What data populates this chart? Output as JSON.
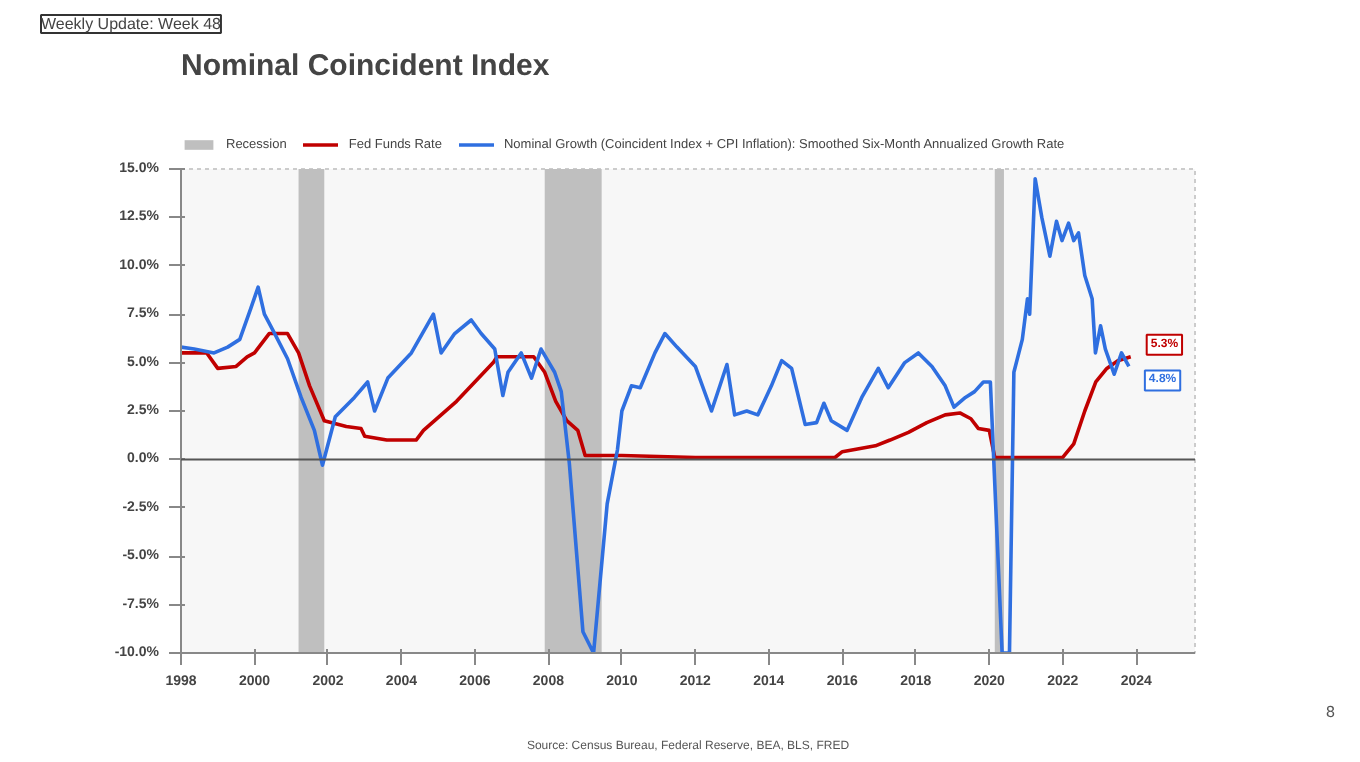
{
  "chart_data": {
    "type": "line",
    "title": "Nominal Coincident Index",
    "annotations": [
      "Weekly Update: Week 48",
      "Source: Census Bureau, Federal Reserve, BEA, BLS, FRED",
      "8",
      {
        "text": "5.3%",
        "x": 2023.85,
        "y": 5.3
      },
      {
        "text": "4.8%",
        "x": 2023.8,
        "y": 4.8
      }
    ],
    "series": [
      {
        "name": "Fed Funds Rate",
        "color": "#c00000",
        "x": [
          1998,
          1998.7,
          1999.0,
          1999.5,
          1999.8,
          2000.0,
          2000.4,
          2000.9,
          2001.2,
          2001.5,
          2001.9,
          2002.5,
          2002.9,
          2003.0,
          2003.6,
          2004.4,
          2004.6,
          2005.5,
          2006.5,
          2006.6,
          2007.6,
          2007.9,
          2008.2,
          2008.5,
          2008.8,
          2009.0,
          2010.0,
          2012.0,
          2015.8,
          2016.0,
          2016.9,
          2017.3,
          2017.8,
          2018.3,
          2018.8,
          2019.2,
          2019.5,
          2019.7,
          2020.0,
          2020.15,
          2022.0,
          2022.3,
          2022.6,
          2022.9,
          2023.2,
          2023.5,
          2023.85
        ],
        "values": [
          5.5,
          5.5,
          4.7,
          4.8,
          5.3,
          5.5,
          6.5,
          6.5,
          5.5,
          3.8,
          2.0,
          1.7,
          1.6,
          1.2,
          1.0,
          1.0,
          1.5,
          3.0,
          5.0,
          5.3,
          5.3,
          4.5,
          3.0,
          2.0,
          1.5,
          0.2,
          0.2,
          0.1,
          0.1,
          0.4,
          0.7,
          1.0,
          1.4,
          1.9,
          2.3,
          2.4,
          2.1,
          1.6,
          1.5,
          0.1,
          0.1,
          0.8,
          2.5,
          4.0,
          4.7,
          5.1,
          5.3
        ]
      },
      {
        "name": "Nominal Growth (Coincident Index + CPI Inflation): Smoothed Six-Month Annualized Growth Rate",
        "color": "#2f6fe0",
        "x": [
          1998.0,
          1998.36,
          1998.9,
          1999.27,
          1999.6,
          1999.9,
          2000.1,
          2000.27,
          2000.55,
          2000.9,
          2001.27,
          2001.63,
          2001.85,
          2002.2,
          2002.72,
          2003.08,
          2003.27,
          2003.63,
          2004.27,
          2004.87,
          2005.08,
          2005.45,
          2005.9,
          2006.17,
          2006.54,
          2006.76,
          2006.9,
          2007.26,
          2007.54,
          2007.8,
          2008.17,
          2008.35,
          2008.57,
          2008.94,
          2009.23,
          2009.6,
          2009.88,
          2010.0,
          2010.26,
          2010.5,
          2010.9,
          2011.17,
          2011.5,
          2012.0,
          2012.44,
          2012.86,
          2013.07,
          2013.4,
          2013.7,
          2014.07,
          2014.35,
          2014.62,
          2014.99,
          2015.3,
          2015.5,
          2015.7,
          2016.13,
          2016.53,
          2016.98,
          2017.25,
          2017.7,
          2018.07,
          2018.44,
          2018.8,
          2019.04,
          2019.35,
          2019.6,
          2019.84,
          2020.03,
          2020.35,
          2020.55,
          2020.67,
          2020.9,
          2021.04,
          2021.1,
          2021.25,
          2021.43,
          2021.65,
          2021.83,
          2021.98,
          2022.16,
          2022.3,
          2022.43,
          2022.6,
          2022.8,
          2022.89,
          2023.03,
          2023.16,
          2023.4,
          2023.6,
          2023.8
        ],
        "values": [
          5.8,
          5.7,
          5.5,
          5.8,
          6.2,
          7.8,
          8.9,
          7.5,
          6.5,
          5.2,
          3.2,
          1.5,
          -0.3,
          2.2,
          3.2,
          4.0,
          2.5,
          4.2,
          5.5,
          7.5,
          5.5,
          6.5,
          7.2,
          6.5,
          5.7,
          3.3,
          4.5,
          5.5,
          4.2,
          5.7,
          4.5,
          3.5,
          -0.2,
          -8.9,
          -10.0,
          -2.3,
          0.5,
          2.5,
          3.8,
          3.7,
          5.5,
          6.5,
          5.8,
          4.8,
          2.5,
          4.9,
          2.3,
          2.5,
          2.3,
          3.8,
          5.1,
          4.7,
          1.8,
          1.9,
          2.9,
          2.0,
          1.5,
          3.2,
          4.7,
          3.7,
          5.0,
          5.5,
          4.8,
          3.8,
          2.7,
          3.2,
          3.5,
          4.0,
          4.0,
          -10.0,
          -10.0,
          4.5,
          6.2,
          8.3,
          7.5,
          14.5,
          12.5,
          10.5,
          12.3,
          11.3,
          12.2,
          11.3,
          11.7,
          9.5,
          8.3,
          5.5,
          6.9,
          5.7,
          4.4,
          5.5,
          4.8
        ]
      }
    ],
    "bands": [
      {
        "axis": "x",
        "from": 2001.2,
        "to": 2001.9,
        "label": "Recession",
        "color": "#bfbfbf"
      },
      {
        "axis": "x",
        "from": 2007.9,
        "to": 2009.45,
        "color": "#bfbfbf"
      },
      {
        "axis": "x",
        "from": 2020.15,
        "to": 2020.4,
        "color": "#bfbfbf"
      }
    ],
    "ref_lines": [
      {
        "axis": "y",
        "value": 0,
        "color": "#555555"
      }
    ],
    "xlim": [
      1998,
      2025.6
    ],
    "xticks": [
      1998,
      2000,
      2002,
      2004,
      2006,
      2008,
      2010,
      2012,
      2014,
      2016,
      2018,
      2020,
      2022,
      2024
    ],
    "ylim": [
      -10,
      15
    ],
    "yticks": [
      {
        "value": 15,
        "label": "15.0%"
      },
      {
        "value": 12.5,
        "label": "12.5%"
      },
      {
        "value": 10,
        "label": "10.0%"
      },
      {
        "value": 7.5,
        "label": "7.5%"
      },
      {
        "value": 5,
        "label": "5.0%"
      },
      {
        "value": 2.5,
        "label": "2.5%"
      },
      {
        "value": 0,
        "label": "0.0%"
      },
      {
        "value": -2.5,
        "label": "-2.5%"
      },
      {
        "value": -5,
        "label": "-5.0%"
      },
      {
        "value": -7.5,
        "label": "-7.5%"
      },
      {
        "value": -10,
        "label": "-10.0%"
      }
    ],
    "grid": false,
    "legend": "top",
    "marker": "none",
    "line_style": "solid"
  }
}
